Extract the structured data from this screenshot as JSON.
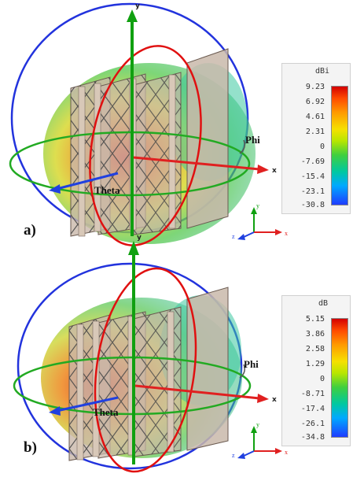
{
  "figure": {
    "panels": [
      {
        "label": "a)",
        "colorbar": {
          "unit": "dBi",
          "ticks": [
            "9.23",
            "6.92",
            "4.61",
            "2.31",
            "0",
            "-7.69",
            "-15.4",
            "-23.1",
            "-30.8"
          ]
        },
        "angle_labels": {
          "phi": "Phi",
          "theta": "Theta"
        },
        "axes": {
          "x": "x",
          "y": "y",
          "z": "z"
        }
      },
      {
        "label": "b)",
        "colorbar": {
          "unit": "dB",
          "ticks": [
            "5.15",
            "3.86",
            "2.58",
            "1.29",
            "0",
            "-8.71",
            "-17.4",
            "-26.1",
            "-34.8"
          ]
        },
        "angle_labels": {
          "phi": "Phi",
          "theta": "Theta"
        },
        "axes": {
          "x": "x",
          "y": "y",
          "z": "z"
        }
      }
    ]
  },
  "colors": {
    "circle_blue": "#2233dd",
    "circle_red": "#e01010",
    "circle_green": "#22aa22",
    "arrow_x": "#e02020",
    "arrow_y": "#10a010",
    "arrow_z": "#2040e0",
    "plate": "#c9b8aa"
  }
}
